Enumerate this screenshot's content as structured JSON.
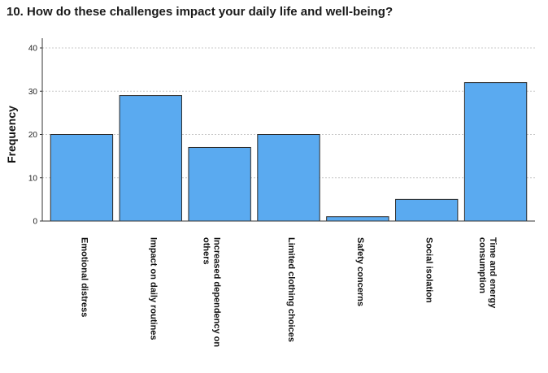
{
  "chart_data": {
    "type": "bar",
    "title": "10. How do these challenges impact your daily life and well-being?",
    "ylabel": "Frequency",
    "xlabel": "",
    "categories": [
      [
        "Emotional distress"
      ],
      [
        "Impact on daily routines"
      ],
      [
        "Increased dependency on",
        "others"
      ],
      [
        "Limited clothing choices"
      ],
      [
        "Safety concerns"
      ],
      [
        "Social isolation"
      ],
      [
        "Time and energy",
        "consumption"
      ]
    ],
    "values": [
      20,
      29,
      17,
      20,
      1,
      5,
      32
    ],
    "ylim": [
      0,
      40
    ],
    "yticks": [
      0,
      10,
      20,
      30,
      40
    ],
    "grid": true,
    "bar_color": "#5aaaf0",
    "bar_stroke": "#2a2a2a"
  }
}
